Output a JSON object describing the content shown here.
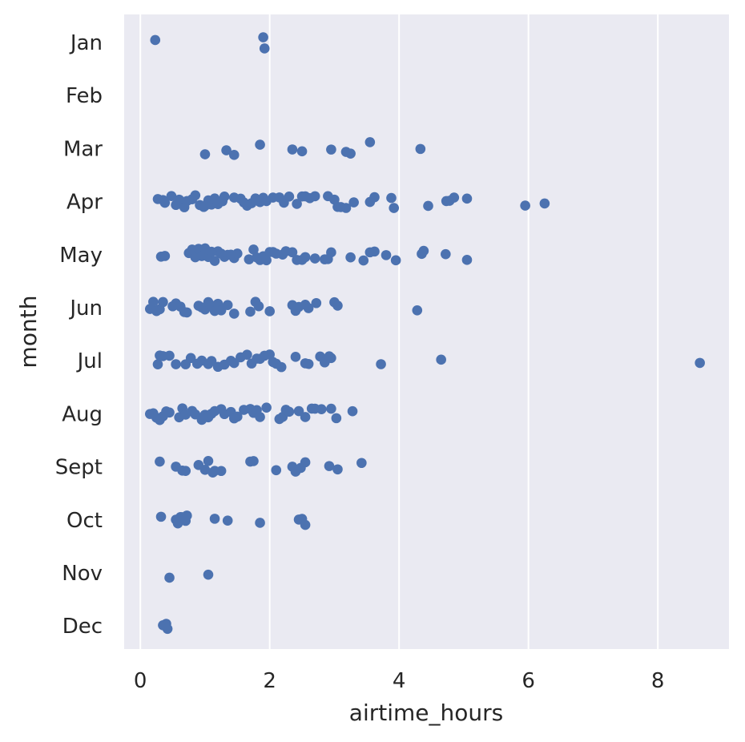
{
  "chart_data": {
    "type": "scatter",
    "style": "strip plot with horizontal jitter per category",
    "xlabel": "airtime_hours",
    "ylabel": "month",
    "xlim": [
      -0.25,
      9.1
    ],
    "x_ticks": [
      0,
      2,
      4,
      6,
      8
    ],
    "categories": [
      "Jan",
      "Feb",
      "Mar",
      "Apr",
      "May",
      "Jun",
      "Jul",
      "Aug",
      "Sept",
      "Oct",
      "Nov",
      "Dec"
    ],
    "grid": true,
    "colors": {
      "background": "#eaeaf2",
      "grid": "#ffffff",
      "points": "#4c72b0",
      "text": "#262626"
    },
    "points": {
      "Jan": [
        0.23,
        1.9,
        1.92
      ],
      "Feb": [],
      "Mar": [
        1.0,
        1.33,
        1.45,
        1.85,
        2.35,
        2.5,
        2.95,
        3.18,
        3.25,
        3.55,
        4.33
      ],
      "Apr": [
        0.27,
        0.35,
        0.38,
        0.48,
        0.55,
        0.6,
        0.68,
        0.72,
        0.8,
        0.85,
        0.92,
        0.98,
        1.0,
        1.05,
        1.1,
        1.15,
        1.2,
        1.27,
        1.3,
        1.45,
        1.55,
        1.6,
        1.65,
        1.72,
        1.78,
        1.85,
        1.9,
        1.95,
        2.05,
        2.15,
        2.22,
        2.3,
        2.42,
        2.5,
        2.55,
        2.62,
        2.7,
        2.9,
        3.0,
        3.05,
        3.1,
        3.18,
        3.3,
        3.55,
        3.62,
        3.88,
        3.92,
        4.45,
        4.73,
        4.78,
        4.85,
        5.05,
        5.95,
        6.25
      ],
      "May": [
        0.32,
        0.38,
        0.75,
        0.8,
        0.85,
        0.9,
        0.95,
        1.0,
        1.05,
        1.1,
        1.15,
        1.2,
        1.25,
        1.3,
        1.35,
        1.4,
        1.45,
        1.5,
        1.68,
        1.75,
        1.8,
        1.85,
        1.9,
        1.95,
        2.0,
        2.05,
        2.1,
        2.2,
        2.25,
        2.35,
        2.42,
        2.5,
        2.55,
        2.7,
        2.85,
        2.9,
        2.95,
        3.25,
        3.45,
        3.55,
        3.62,
        3.8,
        3.95,
        4.35,
        4.38,
        4.72,
        5.05
      ],
      "Jun": [
        0.15,
        0.2,
        0.25,
        0.3,
        0.35,
        0.5,
        0.55,
        0.62,
        0.68,
        0.72,
        0.9,
        0.95,
        1.0,
        1.05,
        1.1,
        1.15,
        1.2,
        1.25,
        1.35,
        1.45,
        1.7,
        1.78,
        1.83,
        2.0,
        2.35,
        2.4,
        2.45,
        2.55,
        2.6,
        2.72,
        3.0,
        3.05,
        4.28
      ],
      "Jul": [
        0.27,
        0.3,
        0.35,
        0.45,
        0.55,
        0.7,
        0.78,
        0.88,
        0.95,
        1.05,
        1.1,
        1.2,
        1.3,
        1.4,
        1.45,
        1.55,
        1.65,
        1.72,
        1.8,
        1.85,
        1.92,
        2.0,
        2.05,
        2.1,
        2.18,
        2.4,
        2.55,
        2.6,
        2.78,
        2.85,
        2.92,
        2.95,
        3.72,
        4.65,
        8.65
      ],
      "Aug": [
        0.15,
        0.2,
        0.25,
        0.3,
        0.35,
        0.4,
        0.45,
        0.6,
        0.65,
        0.7,
        0.8,
        0.85,
        0.95,
        1.0,
        1.05,
        1.1,
        1.15,
        1.25,
        1.3,
        1.4,
        1.45,
        1.5,
        1.6,
        1.7,
        1.75,
        1.8,
        1.85,
        1.95,
        2.15,
        2.2,
        2.25,
        2.3,
        2.45,
        2.55,
        2.65,
        2.7,
        2.8,
        2.95,
        3.03,
        3.28
      ],
      "Sept": [
        0.3,
        0.55,
        0.65,
        0.7,
        0.9,
        1.0,
        1.05,
        1.12,
        1.15,
        1.25,
        1.7,
        1.75,
        2.1,
        2.35,
        2.4,
        2.48,
        2.55,
        2.92,
        3.05,
        3.42
      ],
      "Oct": [
        0.32,
        0.55,
        0.58,
        0.62,
        0.65,
        0.7,
        0.72,
        1.15,
        1.35,
        1.85,
        2.45,
        2.5,
        2.55
      ],
      "Nov": [
        0.45,
        1.05
      ],
      "Dec": [
        0.35,
        0.4,
        0.42
      ]
    }
  }
}
